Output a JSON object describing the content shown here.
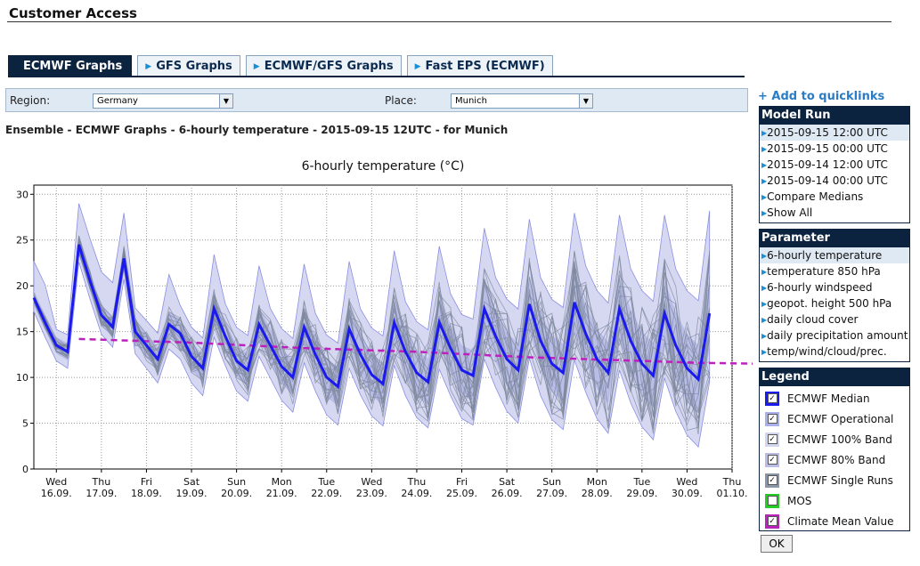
{
  "page": {
    "title": "Customer Access"
  },
  "tabs": [
    {
      "label": "ECMWF Graphs",
      "active": true
    },
    {
      "label": "GFS Graphs",
      "active": false
    },
    {
      "label": "ECMWF/GFS Graphs",
      "active": false
    },
    {
      "label": "Fast EPS (ECMWF)",
      "active": false
    }
  ],
  "selectors": {
    "region_label": "Region:",
    "region_value": "Germany",
    "place_label": "Place:",
    "place_value": "Munich"
  },
  "subtitle": "Ensemble - ECMWF Graphs - 6-hourly temperature - 2015-09-15 12UTC - for Munich",
  "quicklinks": "+ Add to quicklinks",
  "model_run": {
    "title": "Model Run",
    "items": [
      "2015-09-15 12:00 UTC",
      "2015-09-15 00:00 UTC",
      "2015-09-14 12:00 UTC",
      "2015-09-14 00:00 UTC",
      "Compare Medians",
      "Show All"
    ],
    "selected": 0
  },
  "parameter": {
    "title": "Parameter",
    "items": [
      "6-hourly temperature",
      "temperature 850 hPa",
      "6-hourly windspeed",
      "geopot. height 500 hPa",
      "daily cloud cover",
      "daily precipitation amount",
      "temp/wind/cloud/prec."
    ],
    "selected": 0
  },
  "legend": {
    "title": "Legend",
    "items": [
      {
        "label": "ECMWF Median",
        "checked": true,
        "color": "#1a1aee"
      },
      {
        "label": "ECMWF Operational",
        "checked": true,
        "color": "#a9b0ee"
      },
      {
        "label": "ECMWF 100% Band",
        "checked": true,
        "color": "#d2d5ee"
      },
      {
        "label": "ECMWF 80% Band",
        "checked": true,
        "color": "#b9bce6"
      },
      {
        "label": "ECMWF Single Runs",
        "checked": true,
        "color": "#8a96a8"
      },
      {
        "label": "MOS",
        "checked": false,
        "color": "#22cc22"
      },
      {
        "label": "Climate Mean Value",
        "checked": true,
        "color": "#bb22bb"
      }
    ]
  },
  "ok_label": "OK",
  "chart_data": {
    "type": "line",
    "title": "6-hourly temperature (°C)",
    "ylim": [
      0,
      31
    ],
    "yticks": [
      0,
      5,
      10,
      15,
      20,
      25,
      30
    ],
    "xlim": [
      0,
      62
    ],
    "grid": true,
    "x_tick_days": [
      "Wed",
      "Thu",
      "Fri",
      "Sat",
      "Sun",
      "Mon",
      "Tue",
      "Wed",
      "Thu",
      "Fri",
      "Sat",
      "Sun",
      "Mon",
      "Tue",
      "Wed",
      "Thu"
    ],
    "x_tick_dates": [
      "16.09.",
      "17.09.",
      "18.09.",
      "19.09.",
      "20.09.",
      "21.09.",
      "22.09.",
      "23.09.",
      "24.09.",
      "25.09.",
      "26.09.",
      "27.09.",
      "28.09.",
      "29.09.",
      "30.09.",
      "01.10."
    ],
    "series": [
      {
        "role": "median",
        "color": "#1a1aee",
        "values": [
          18.7,
          16.0,
          13.5,
          12.8,
          24.5,
          20.5,
          16.8,
          15.5,
          23.0,
          15.0,
          13.5,
          12.0,
          15.8,
          14.8,
          12.3,
          11.0,
          17.5,
          14.5,
          11.8,
          10.8,
          15.8,
          13.5,
          11.2,
          10.0,
          15.5,
          12.5,
          10.0,
          9.0,
          15.3,
          12.5,
          10.3,
          9.3,
          16.0,
          12.8,
          10.5,
          9.5,
          16.0,
          13.2,
          10.8,
          10.2,
          17.5,
          14.5,
          12.0,
          10.8,
          18.0,
          14.0,
          11.5,
          10.5,
          18.2,
          14.8,
          12.0,
          10.5,
          17.5,
          14.0,
          11.5,
          10.2,
          17.0,
          13.5,
          11.0,
          9.8,
          17.0
        ]
      },
      {
        "role": "climate_mean",
        "color": "#bb22bb",
        "values": [
          14.2,
          14.0,
          13.8,
          13.5,
          13.2,
          13.0,
          12.8,
          12.5,
          12.2,
          12.0,
          11.8,
          11.6,
          11.5
        ]
      }
    ]
  }
}
